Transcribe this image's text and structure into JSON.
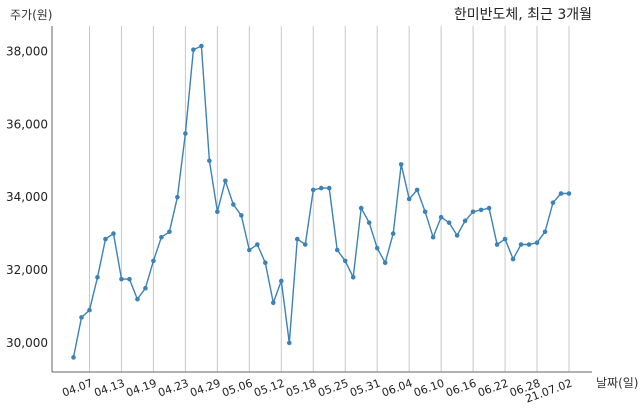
{
  "chart_data": {
    "type": "line",
    "title": "한미반도체, 최근 3개월",
    "xlabel": "날짜(일)",
    "ylabel": "주가(원)",
    "ylim": [
      29200,
      38700
    ],
    "y_ticks": [
      30000,
      32000,
      34000,
      36000,
      38000
    ],
    "y_tick_labels": [
      "30,000",
      "32,000",
      "34,000",
      "36,000",
      "38,000"
    ],
    "x_tick_labels": [
      "04.07",
      "04.13",
      "04.19",
      "04.23",
      "04.29",
      "05.06",
      "05.12",
      "05.18",
      "05.25",
      "05.31",
      "06.04",
      "06.10",
      "06.16",
      "06.22",
      "06.28",
      "21.07.02"
    ],
    "x_tick_positions": [
      2,
      6,
      10,
      14,
      18,
      22,
      26,
      30,
      34,
      38,
      42,
      46,
      50,
      54,
      58,
      62
    ],
    "grid": "vertical",
    "series": [
      {
        "color": "#3b82b7",
        "values": [
          29600,
          30700,
          30900,
          31800,
          32850,
          33000,
          31750,
          31750,
          31200,
          31500,
          32250,
          32900,
          33050,
          34000,
          35750,
          38050,
          38150,
          35000,
          33600,
          34450,
          33800,
          33500,
          32550,
          32700,
          32200,
          31100,
          31700,
          30000,
          32850,
          32700,
          34200,
          34250,
          34250,
          32550,
          32250,
          31800,
          33700,
          33300,
          32600,
          32200,
          33000,
          34900,
          33950,
          34200,
          33600,
          32900,
          33450,
          33300,
          32950,
          33350,
          33600,
          33650,
          33700,
          32700,
          32850,
          32300,
          32700,
          32700,
          32750,
          33050,
          33850,
          34100,
          34100
        ]
      }
    ]
  }
}
